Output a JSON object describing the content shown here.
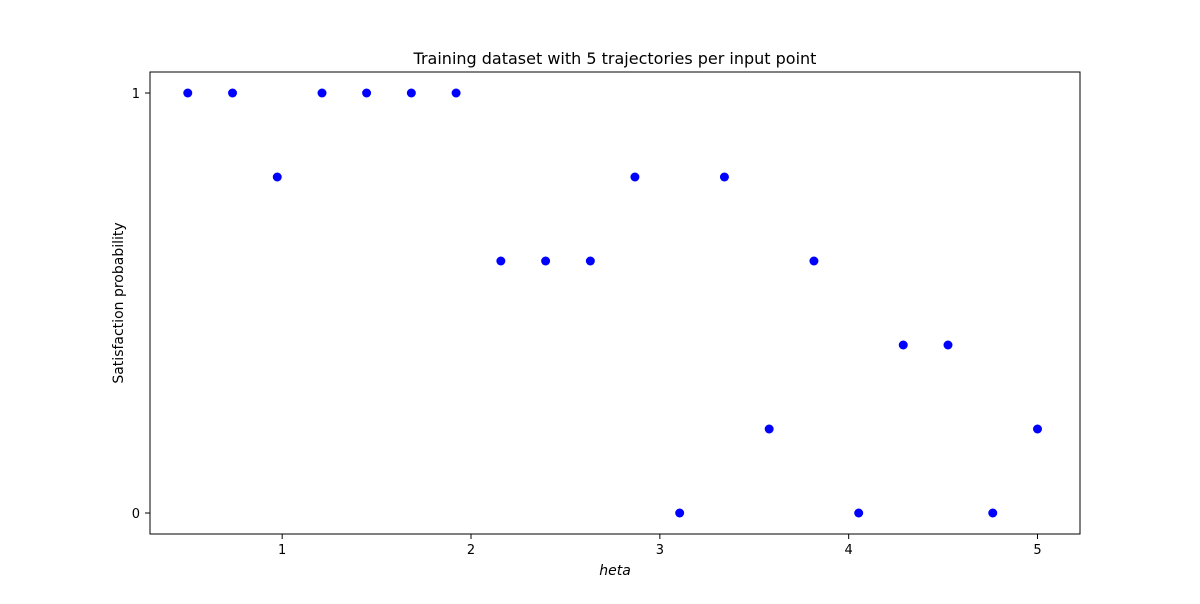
{
  "chart_data": {
    "type": "scatter",
    "title": "Training dataset with 5 trajectories per input point",
    "xlabel": "heta",
    "ylabel": "Satisfaction probability",
    "xlim": [
      0.3,
      5.225
    ],
    "ylim": [
      -0.05,
      1.05
    ],
    "xticks": [
      1,
      2,
      3,
      4,
      5
    ],
    "xtick_labels": [
      "1",
      "2",
      "3",
      "4",
      "5"
    ],
    "yticks": [
      0,
      1
    ],
    "ytick_labels": [
      "0",
      "1"
    ],
    "grid": false,
    "marker_color": "#0000ff",
    "series": [
      {
        "x": [
          0.5,
          0.737,
          0.974,
          1.211,
          1.447,
          1.684,
          1.921,
          2.158,
          2.395,
          2.632,
          2.868,
          3.105,
          3.342,
          3.579,
          3.816,
          4.053,
          4.289,
          4.526,
          4.763,
          5.0
        ],
        "y": [
          1.0,
          1.0,
          0.8,
          1.0,
          1.0,
          1.0,
          1.0,
          0.6,
          0.6,
          0.6,
          0.8,
          0.0,
          0.8,
          0.2,
          0.6,
          0.0,
          0.4,
          0.4,
          0.0,
          0.2
        ]
      }
    ]
  }
}
